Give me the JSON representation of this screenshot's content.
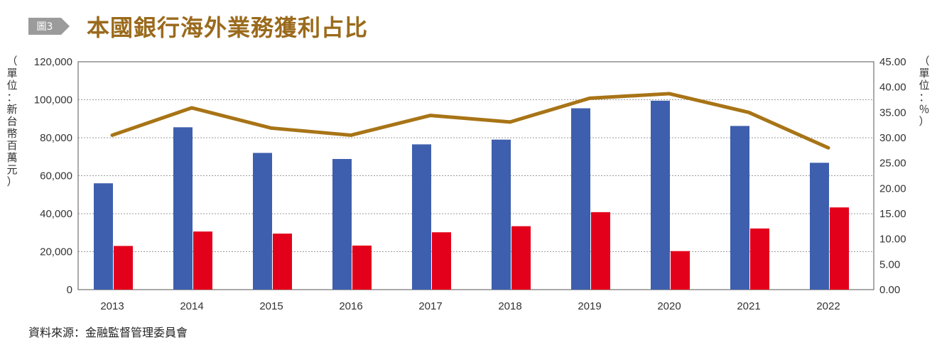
{
  "header": {
    "tag_label": "圖3",
    "title": "本國銀行海外業務獲利占比"
  },
  "left_unit": [
    "（",
    "單",
    "位",
    "：",
    "新",
    "台",
    "幣",
    "百",
    "萬",
    "元",
    "）"
  ],
  "right_unit": [
    "（",
    "單",
    "位",
    "：",
    "％",
    "）"
  ],
  "source": "資料來源：金融監督管理委員會",
  "colors": {
    "title": "#9a6a1c",
    "tag_bg": "#9b9b9b",
    "bar_blue": "#3e5fad",
    "bar_red": "#e3001b",
    "line": "#a87416"
  },
  "chart_data": {
    "type": "bar",
    "categories": [
      "2013",
      "2014",
      "2015",
      "2016",
      "2017",
      "2018",
      "2019",
      "2020",
      "2021",
      "2022"
    ],
    "series": [
      {
        "type": "bar",
        "axis": "left",
        "color": "#3e5fad",
        "values": [
          56000,
          85500,
          72000,
          68800,
          76500,
          79000,
          95500,
          99500,
          86200,
          66800
        ]
      },
      {
        "type": "bar",
        "axis": "left",
        "color": "#e3001b",
        "values": [
          23000,
          30600,
          29500,
          23200,
          30200,
          33400,
          40800,
          20300,
          32200,
          43300
        ]
      },
      {
        "type": "line",
        "axis": "right",
        "color": "#a87416",
        "values": [
          30.5,
          35.9,
          31.9,
          30.5,
          34.4,
          33.1,
          37.8,
          38.7,
          35.0,
          28.0
        ]
      }
    ],
    "left_axis": {
      "ylim": [
        0,
        120000
      ],
      "ticks": [
        0,
        20000,
        40000,
        60000,
        80000,
        100000,
        120000
      ],
      "tick_labels": [
        "0",
        "20,000",
        "40,000",
        "60,000",
        "80,000",
        "100,000",
        "120,000"
      ]
    },
    "right_axis": {
      "ylim": [
        0,
        45
      ],
      "ticks": [
        0,
        5,
        10,
        15,
        20,
        25,
        30,
        35,
        40,
        45
      ],
      "tick_labels": [
        "0.00",
        "5.00",
        "10.00",
        "15.00",
        "20.00",
        "25.00",
        "30.00",
        "35.00",
        "40.00",
        "45.00"
      ]
    },
    "grid": true
  }
}
